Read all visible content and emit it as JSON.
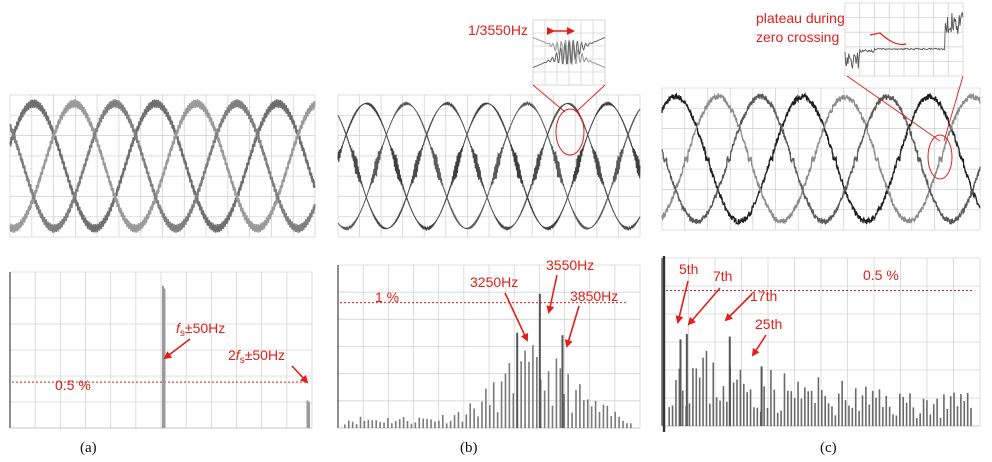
{
  "colors": {
    "annotation": "#e0201a",
    "grid": "#d4d4d4",
    "trace_light": "#8a8a8a",
    "trace_dark": "#2a2a2a"
  },
  "captions": [
    "(a)",
    "(b)",
    "(c)"
  ],
  "chart_data": [
    {
      "type": "line",
      "panel": "a-waveform",
      "description_units": "normalized amplitude, three phases",
      "phases": 3,
      "cycles_shown": 2.5,
      "ripple": "high-frequency ripple at switching frequency",
      "grid": true
    },
    {
      "type": "line",
      "panel": "b-waveform",
      "phases": 3,
      "cycles_shown": 2.5,
      "ripple": "oscillation near zero crossings",
      "annotations": [
        {
          "text": "1/3550Hz"
        }
      ],
      "grid": true
    },
    {
      "type": "line",
      "panel": "c-waveform",
      "phases": 3,
      "cycles_shown": 2.5,
      "ripple": "noisy, plateau at zero crossing",
      "annotations": [
        {
          "text": "plateau during"
        },
        {
          "text": "zero crossing"
        }
      ],
      "grid": true
    },
    {
      "type": "bar",
      "panel": "a-spectrum",
      "threshold": {
        "label": "0.5 %",
        "value": 0.5
      },
      "annotations": [
        {
          "text_italic": "f",
          "sub": "s",
          "rest": "±50Hz"
        },
        {
          "prefix": "2",
          "text_italic": "f",
          "sub": "s",
          "rest": "±50Hz"
        }
      ],
      "bars": [
        {
          "pos": 0.51,
          "value": 1.55
        },
        {
          "pos": 0.515,
          "value": 1.52
        },
        {
          "pos": 0.995,
          "value": 0.3
        },
        {
          "pos": 1.0,
          "value": 0.28
        }
      ],
      "ylim": [
        0,
        1.7
      ],
      "grid": true
    },
    {
      "type": "bar",
      "panel": "b-spectrum",
      "threshold": {
        "label": "1 %",
        "value": 1.0
      },
      "annotations": [
        {
          "text": "3250Hz"
        },
        {
          "text": "3550Hz"
        },
        {
          "text": "3850Hz"
        }
      ],
      "peaks": [
        {
          "pos": 0.59,
          "value": 0.76
        },
        {
          "pos": 0.665,
          "value": 1.07
        },
        {
          "pos": 0.74,
          "value": 0.74
        }
      ],
      "ylim": [
        0,
        1.3
      ],
      "grid": true
    },
    {
      "type": "bar",
      "panel": "c-spectrum",
      "threshold": {
        "label": "0.5 %",
        "value": 0.5
      },
      "annotations": [
        {
          "text": "5th"
        },
        {
          "text": "7th"
        },
        {
          "text": "17th"
        },
        {
          "text": "25th"
        }
      ],
      "peaks": [
        {
          "pos": 0.055,
          "value": 0.32
        },
        {
          "pos": 0.075,
          "value": 0.34
        },
        {
          "pos": 0.21,
          "value": 0.33
        },
        {
          "pos": 0.31,
          "value": 0.22
        }
      ],
      "ylim": [
        0,
        0.62
      ],
      "grid": true
    }
  ]
}
